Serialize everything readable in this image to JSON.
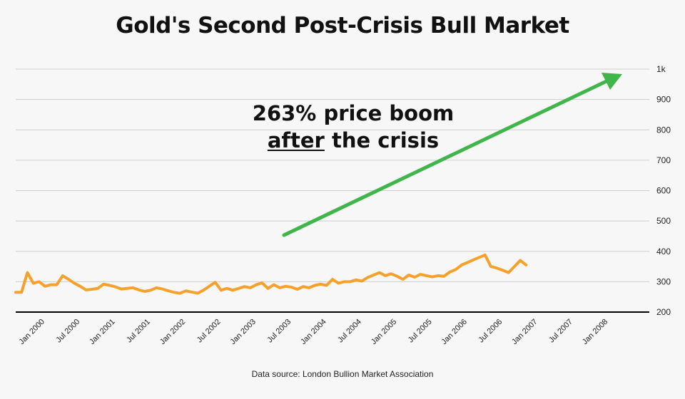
{
  "chart_data": {
    "type": "line",
    "title": "Gold's Second Post-Crisis Bull Market",
    "xlabel": "",
    "ylabel": "",
    "ylim": [
      200,
      1000
    ],
    "xlim": [
      "1999-09",
      "2008-09"
    ],
    "grid": true,
    "colors": {
      "line": "#f5a12b",
      "arrow": "#3fb54a",
      "grid": "#cfcfcf",
      "axis": "#000000"
    },
    "y_ticks": [
      {
        "value": 200,
        "label": "200"
      },
      {
        "value": 300,
        "label": "300"
      },
      {
        "value": 400,
        "label": "400"
      },
      {
        "value": 500,
        "label": "500"
      },
      {
        "value": 600,
        "label": "600"
      },
      {
        "value": 700,
        "label": "700"
      },
      {
        "value": 800,
        "label": "800"
      },
      {
        "value": 900,
        "label": "900"
      },
      {
        "value": 1000,
        "label": "1k"
      }
    ],
    "x_ticks": [
      {
        "date": "2000-01",
        "label": "Jan 2000"
      },
      {
        "date": "2000-07",
        "label": "Jul 2000"
      },
      {
        "date": "2001-01",
        "label": "Jan 2001"
      },
      {
        "date": "2001-07",
        "label": "Jul 2001"
      },
      {
        "date": "2002-01",
        "label": "Jan 2002"
      },
      {
        "date": "2002-07",
        "label": "Jul 2002"
      },
      {
        "date": "2003-01",
        "label": "Jan 2003"
      },
      {
        "date": "2003-07",
        "label": "Jul 2003"
      },
      {
        "date": "2004-01",
        "label": "Jan 2004"
      },
      {
        "date": "2004-07",
        "label": "Jul 2004"
      },
      {
        "date": "2005-01",
        "label": "Jan 2005"
      },
      {
        "date": "2005-07",
        "label": "Jul 2005"
      },
      {
        "date": "2006-01",
        "label": "Jan 2006"
      },
      {
        "date": "2006-07",
        "label": "Jul 2006"
      },
      {
        "date": "2007-01",
        "label": "Jan 2007"
      },
      {
        "date": "2007-07",
        "label": "Jul 2007"
      },
      {
        "date": "2008-01",
        "label": "Jan 2008"
      }
    ],
    "series": [
      {
        "points": [
          [
            "1999-09",
            265
          ],
          [
            "1999-10",
            265
          ],
          [
            "1999-11",
            330
          ],
          [
            "1999-12",
            295
          ],
          [
            "2000-01",
            300
          ],
          [
            "2000-02",
            285
          ],
          [
            "2000-03",
            290
          ],
          [
            "2000-04",
            290
          ],
          [
            "2000-05",
            320
          ],
          [
            "2000-06",
            308
          ],
          [
            "2000-07",
            295
          ],
          [
            "2000-08",
            285
          ],
          [
            "2000-09",
            273
          ],
          [
            "2000-10",
            275
          ],
          [
            "2000-11",
            278
          ],
          [
            "2000-12",
            292
          ],
          [
            "2001-01",
            288
          ],
          [
            "2001-02",
            283
          ],
          [
            "2001-03",
            276
          ],
          [
            "2001-04",
            278
          ],
          [
            "2001-05",
            280
          ],
          [
            "2001-06",
            273
          ],
          [
            "2001-07",
            268
          ],
          [
            "2001-08",
            272
          ],
          [
            "2001-09",
            280
          ],
          [
            "2001-10",
            276
          ],
          [
            "2001-11",
            270
          ],
          [
            "2001-12",
            265
          ],
          [
            "2002-01",
            262
          ],
          [
            "2002-02",
            270
          ],
          [
            "2002-03",
            266
          ],
          [
            "2002-04",
            262
          ],
          [
            "2002-05",
            272
          ],
          [
            "2002-06",
            285
          ],
          [
            "2002-07",
            298
          ],
          [
            "2002-08",
            272
          ],
          [
            "2002-09",
            278
          ],
          [
            "2002-10",
            272
          ],
          [
            "2002-11",
            278
          ],
          [
            "2002-12",
            284
          ],
          [
            "2003-01",
            280
          ],
          [
            "2003-02",
            290
          ],
          [
            "2003-03",
            296
          ],
          [
            "2003-04",
            278
          ],
          [
            "2003-05",
            290
          ],
          [
            "2003-06",
            280
          ],
          [
            "2003-07",
            285
          ],
          [
            "2003-08",
            282
          ],
          [
            "2003-09",
            275
          ],
          [
            "2003-10",
            284
          ],
          [
            "2003-11",
            280
          ],
          [
            "2003-12",
            288
          ],
          [
            "2004-01",
            292
          ],
          [
            "2004-02",
            288
          ],
          [
            "2004-03",
            308
          ],
          [
            "2004-04",
            295
          ],
          [
            "2004-05",
            300
          ],
          [
            "2004-06",
            300
          ],
          [
            "2004-07",
            306
          ],
          [
            "2004-08",
            302
          ],
          [
            "2004-09",
            314
          ],
          [
            "2004-10",
            322
          ],
          [
            "2004-11",
            330
          ],
          [
            "2004-12",
            320
          ],
          [
            "2005-01",
            326
          ],
          [
            "2005-02",
            318
          ],
          [
            "2005-03",
            308
          ],
          [
            "2005-04",
            322
          ],
          [
            "2005-05",
            315
          ],
          [
            "2005-06",
            324
          ],
          [
            "2005-07",
            320
          ],
          [
            "2005-08",
            316
          ],
          [
            "2005-09",
            320
          ],
          [
            "2005-10",
            318
          ],
          [
            "2005-11",
            332
          ],
          [
            "2005-12",
            340
          ],
          [
            "2006-01",
            355
          ],
          [
            "2006-02",
            363
          ],
          [
            "2006-03",
            372
          ],
          [
            "2006-04",
            380
          ],
          [
            "2006-05",
            388
          ],
          [
            "2006-06",
            350
          ],
          [
            "2006-07",
            345
          ],
          [
            "2006-08",
            338
          ],
          [
            "2006-09",
            330
          ],
          [
            "2006-10",
            350
          ],
          [
            "2006-11",
            370
          ],
          [
            "2006-12",
            355
          ]
        ]
      }
    ]
  },
  "annotation": {
    "line1": "263% price boom",
    "line2_underlined": "after",
    "line2_rest": " the crisis"
  },
  "source": "Data source: London Bullion Market Association"
}
